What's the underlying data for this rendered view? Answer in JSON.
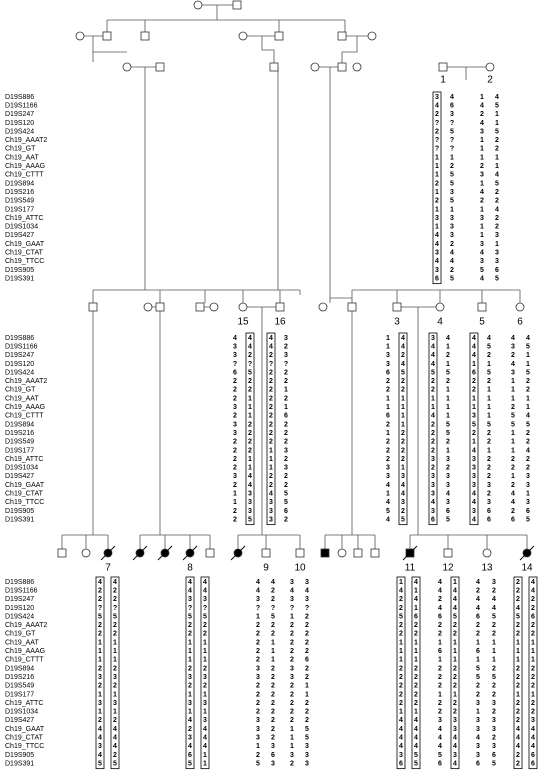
{
  "markers": [
    "D19S886",
    "D19S1166",
    "D19S247",
    "D19S120",
    "D19S424",
    "Ch19_AAAT2",
    "Ch19_GT",
    "Ch19_AAT",
    "Ch19_AAAG",
    "Ch19_CTTT",
    "D19S894",
    "D19S216",
    "D19S549",
    "D19S177",
    "Ch19_ATTC",
    "D19S1034",
    "D19S427",
    "Ch19_GAAT",
    "Ch19_CTAT",
    "Ch19_TTCC",
    "D19S905",
    "D19S391"
  ],
  "individuals": [
    {
      "id": "1",
      "alleles": [
        [
          "3",
          "4",
          "2",
          "?",
          "2",
          "?",
          "?",
          "1",
          "1",
          "1",
          "2",
          "1",
          "2",
          "1",
          "3",
          "1",
          "4",
          "4",
          "3",
          "4",
          "3",
          "6"
        ],
        [
          "4",
          "6",
          "3",
          "?",
          "5",
          "?",
          "?",
          "1",
          "2",
          "5",
          "5",
          "3",
          "5",
          "1",
          "3",
          "3",
          "3",
          "2",
          "4",
          "4",
          "2",
          "5"
        ]
      ]
    },
    {
      "id": "2",
      "alleles": [
        [
          "1",
          "4",
          "2",
          "4",
          "3",
          "1",
          "1",
          "1",
          "2",
          "3",
          "1",
          "4",
          "2",
          "1",
          "3",
          "1",
          "1",
          "3",
          "4",
          "3",
          "5",
          "4"
        ],
        [
          "4",
          "5",
          "1",
          "1",
          "5",
          "2",
          "2",
          "1",
          "1",
          "4",
          "5",
          "2",
          "2",
          "4",
          "2",
          "2",
          "3",
          "1",
          "3",
          "3",
          "6",
          "5"
        ]
      ]
    },
    {
      "id": "15",
      "alleles": [
        [
          "4",
          "3",
          "3",
          "?",
          "6",
          "2",
          "2",
          "2",
          "3",
          "2",
          "3",
          "3",
          "2",
          "2",
          "2",
          "2",
          "3",
          "2",
          "1",
          "1",
          "2",
          "2"
        ],
        [
          "4",
          "4",
          "2",
          "?",
          "5",
          "2",
          "2",
          "1",
          "1",
          "1",
          "2",
          "2",
          "2",
          "2",
          "1",
          "1",
          "4",
          "4",
          "3",
          "3",
          "3",
          "5"
        ]
      ]
    },
    {
      "id": "16",
      "alleles": [
        [
          "4",
          "4",
          "2",
          "?",
          "2",
          "2",
          "2",
          "2",
          "2",
          "2",
          "2",
          "2",
          "2",
          "1",
          "1",
          "1",
          "2",
          "2",
          "4",
          "3",
          "3",
          "3"
        ],
        [
          "3",
          "2",
          "3",
          "?",
          "2",
          "2",
          "1",
          "2",
          "1",
          "6",
          "2",
          "2",
          "2",
          "3",
          "2",
          "3",
          "2",
          "2",
          "5",
          "5",
          "6",
          "2"
        ]
      ]
    },
    {
      "id": "3",
      "alleles": [
        [
          "1",
          "1",
          "3",
          "3",
          "6",
          "2",
          "2",
          "1",
          "1",
          "6",
          "2",
          "1",
          "2",
          "2",
          "2",
          "3",
          "3",
          "4",
          "1",
          "4",
          "5",
          "4"
        ],
        [
          "4",
          "4",
          "2",
          "4",
          "5",
          "2",
          "2",
          "1",
          "1",
          "1",
          "1",
          "2",
          "2",
          "2",
          "2",
          "1",
          "3",
          "4",
          "4",
          "3",
          "2",
          "5"
        ]
      ]
    },
    {
      "id": "4",
      "alleles": [
        [
          "3",
          "4",
          "4",
          "4",
          "5",
          "2",
          "2",
          "1",
          "1",
          "4",
          "2",
          "2",
          "2",
          "2",
          "3",
          "2",
          "3",
          "3",
          "3",
          "4",
          "3",
          "6"
        ],
        [
          "4",
          "1",
          "2",
          "1",
          "5",
          "2",
          "1",
          "1",
          "1",
          "1",
          "5",
          "5",
          "2",
          "1",
          "3",
          "2",
          "3",
          "3",
          "4",
          "3",
          "6",
          "5"
        ]
      ]
    },
    {
      "id": "5",
      "alleles": [
        [
          "4",
          "4",
          "4",
          "1",
          "6",
          "2",
          "2",
          "1",
          "1",
          "3",
          "5",
          "2",
          "1",
          "4",
          "3",
          "3",
          "3",
          "3",
          "4",
          "4",
          "3",
          "4"
        ],
        [
          "4",
          "5",
          "2",
          "1",
          "5",
          "2",
          "1",
          "1",
          "1",
          "1",
          "5",
          "2",
          "2",
          "1",
          "2",
          "2",
          "2",
          "3",
          "2",
          "3",
          "6",
          "6"
        ]
      ]
    },
    {
      "id": "6",
      "alleles": [
        [
          "4",
          "3",
          "2",
          "4",
          "3",
          "1",
          "1",
          "1",
          "2",
          "5",
          "5",
          "1",
          "1",
          "1",
          "2",
          "2",
          "1",
          "2",
          "4",
          "4",
          "2",
          "6"
        ],
        [
          "4",
          "5",
          "1",
          "1",
          "5",
          "2",
          "2",
          "1",
          "1",
          "4",
          "5",
          "2",
          "2",
          "4",
          "2",
          "2",
          "3",
          "3",
          "1",
          "3",
          "6",
          "5"
        ]
      ]
    },
    {
      "id": "7",
      "alleles": [
        [
          "4",
          "2",
          "2",
          "?",
          "5",
          "2",
          "2",
          "1",
          "1",
          "1",
          "2",
          "3",
          "2",
          "1",
          "3",
          "1",
          "2",
          "4",
          "4",
          "3",
          "4",
          "5"
        ],
        [
          "4",
          "2",
          "2",
          "?",
          "5",
          "2",
          "2",
          "1",
          "1",
          "1",
          "2",
          "3",
          "2",
          "1",
          "3",
          "1",
          "2",
          "4",
          "4",
          "4",
          "2",
          "5"
        ]
      ]
    },
    {
      "id": "8",
      "alleles": [
        [
          "4",
          "4",
          "3",
          "?",
          "5",
          "2",
          "2",
          "1",
          "1",
          "1",
          "2",
          "3",
          "2",
          "1",
          "3",
          "1",
          "4",
          "2",
          "3",
          "4",
          "6",
          "5"
        ],
        [
          "4",
          "4",
          "3",
          "?",
          "5",
          "2",
          "2",
          "1",
          "1",
          "1",
          "2",
          "3",
          "2",
          "1",
          "3",
          "1",
          "3",
          "4",
          "4",
          "4",
          "1",
          "1"
        ]
      ]
    },
    {
      "id": "9",
      "alleles": [
        [
          "4",
          "4",
          "3",
          "?",
          "1",
          "2",
          "2",
          "2",
          "2",
          "2",
          "3",
          "3",
          "2",
          "2",
          "2",
          "2",
          "3",
          "3",
          "3",
          "1",
          "2",
          "5"
        ],
        [
          "4",
          "2",
          "2",
          "?",
          "5",
          "2",
          "2",
          "1",
          "1",
          "1",
          "2",
          "2",
          "2",
          "2",
          "2",
          "2",
          "2",
          "2",
          "2",
          "3",
          "6",
          "3"
        ]
      ]
    },
    {
      "id": "10",
      "alleles": [
        [
          "3",
          "4",
          "3",
          "?",
          "1",
          "2",
          "2",
          "2",
          "2",
          "2",
          "3",
          "3",
          "2",
          "2",
          "2",
          "2",
          "2",
          "1",
          "1",
          "1",
          "3",
          "2"
        ],
        [
          "3",
          "4",
          "3",
          "?",
          "2",
          "2",
          "2",
          "2",
          "2",
          "6",
          "2",
          "2",
          "1",
          "1",
          "2",
          "2",
          "2",
          "5",
          "5",
          "3",
          "3",
          "3"
        ]
      ]
    },
    {
      "id": "11",
      "alleles": [
        [
          "1",
          "4",
          "2",
          "2",
          "5",
          "2",
          "2",
          "1",
          "1",
          "1",
          "2",
          "2",
          "2",
          "2",
          "2",
          "1",
          "4",
          "4",
          "4",
          "4",
          "3",
          "6"
        ],
        [
          "4",
          "1",
          "4",
          "1",
          "6",
          "2",
          "2",
          "1",
          "1",
          "1",
          "2",
          "2",
          "2",
          "2",
          "2",
          "1",
          "4",
          "4",
          "4",
          "4",
          "5",
          "5"
        ]
      ]
    },
    {
      "id": "12",
      "alleles": [
        [
          "4",
          "4",
          "2",
          "4",
          "6",
          "2",
          "2",
          "1",
          "6",
          "1",
          "2",
          "2",
          "2",
          "1",
          "2",
          "2",
          "3",
          "4",
          "4",
          "4",
          "5",
          "6"
        ],
        [
          "1",
          "4",
          "4",
          "4",
          "5",
          "2",
          "2",
          "1",
          "1",
          "1",
          "2",
          "2",
          "2",
          "1",
          "2",
          "2",
          "3",
          "3",
          "4",
          "4",
          "3",
          "4"
        ]
      ]
    },
    {
      "id": "13",
      "alleles": [
        [
          "4",
          "2",
          "4",
          "4",
          "6",
          "2",
          "2",
          "1",
          "6",
          "1",
          "5",
          "5",
          "2",
          "2",
          "3",
          "1",
          "3",
          "3",
          "4",
          "3",
          "3",
          "6"
        ],
        [
          "3",
          "2",
          "4",
          "4",
          "5",
          "2",
          "2",
          "1",
          "1",
          "1",
          "2",
          "5",
          "2",
          "2",
          "3",
          "2",
          "3",
          "3",
          "2",
          "3",
          "6",
          "5"
        ]
      ]
    },
    {
      "id": "14",
      "alleles": [
        [
          "2",
          "2",
          "2",
          "4",
          "5",
          "2",
          "2",
          "1",
          "1",
          "1",
          "2",
          "2",
          "2",
          "1",
          "2",
          "2",
          "2",
          "4",
          "4",
          "4",
          "2",
          "2"
        ],
        [
          "4",
          "4",
          "2",
          "2",
          "6",
          "2",
          "2",
          "1",
          "1",
          "1",
          "2",
          "2",
          "2",
          "1",
          "2",
          "2",
          "3",
          "4",
          "4",
          "4",
          "6",
          "6"
        ]
      ]
    }
  ]
}
